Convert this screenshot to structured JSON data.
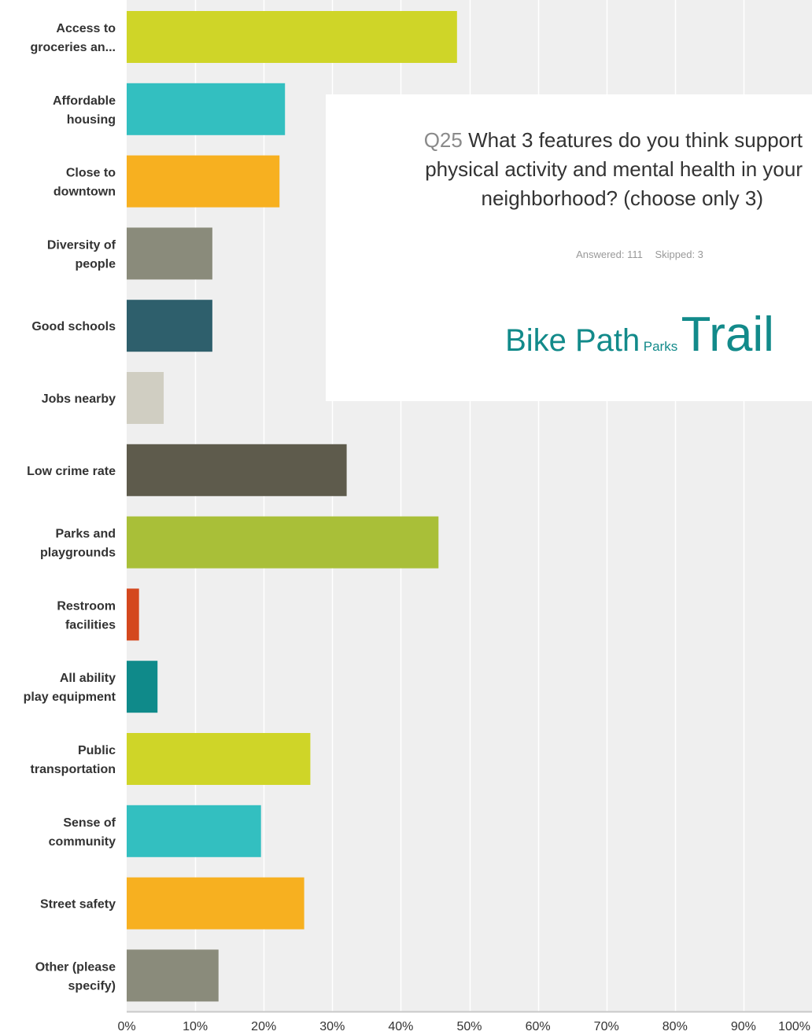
{
  "chart_data": {
    "type": "bar",
    "orientation": "horizontal",
    "categories": [
      [
        "Access to",
        "groceries an..."
      ],
      [
        "Affordable",
        "housing"
      ],
      [
        "Close to",
        "downtown"
      ],
      [
        "Diversity of",
        "people"
      ],
      [
        "Good schools"
      ],
      [
        "Jobs nearby"
      ],
      [
        "Low crime rate"
      ],
      [
        "Parks and",
        "playgrounds"
      ],
      [
        "Restroom",
        "facilities"
      ],
      [
        "All ability",
        "play equipment"
      ],
      [
        "Public",
        "transportation"
      ],
      [
        "Sense of",
        "community"
      ],
      [
        "Street safety"
      ],
      [
        "Other (please",
        "specify)"
      ]
    ],
    "values": [
      48.2,
      23.1,
      22.3,
      12.5,
      12.5,
      5.4,
      32.1,
      45.5,
      1.8,
      4.5,
      26.8,
      19.6,
      25.9,
      13.4
    ],
    "colors": [
      "#cfd528",
      "#33bfc0",
      "#f7b020",
      "#8a8b7b",
      "#2e5f6c",
      "#d0cec2",
      "#5e5b4c",
      "#a9bf38",
      "#d4481e",
      "#0f8a8a",
      "#cfd528",
      "#33bfc0",
      "#f7b020",
      "#8a8b7b"
    ],
    "xlim": [
      0,
      100
    ],
    "xticks": [
      "0%",
      "10%",
      "20%",
      "30%",
      "40%",
      "50%",
      "60%",
      "70%",
      "80%",
      "90%",
      "100%"
    ],
    "grid": true,
    "title": "Q25 What 3 features do you think support physical activity and mental health in your neighborhood? (choose only 3)",
    "xlabel": "",
    "ylabel": ""
  },
  "title_box": {
    "q_label": "Q25",
    "lines": [
      "What 3 features do you think support",
      "physical activity and mental health in your",
      "neighborhood? (choose only 3)"
    ],
    "answered": "Answered: 111",
    "skipped": "Skipped: 3"
  },
  "word_cloud": {
    "words": [
      "Bike Path",
      "Parks",
      "Trail"
    ],
    "color": "#128a8a"
  }
}
